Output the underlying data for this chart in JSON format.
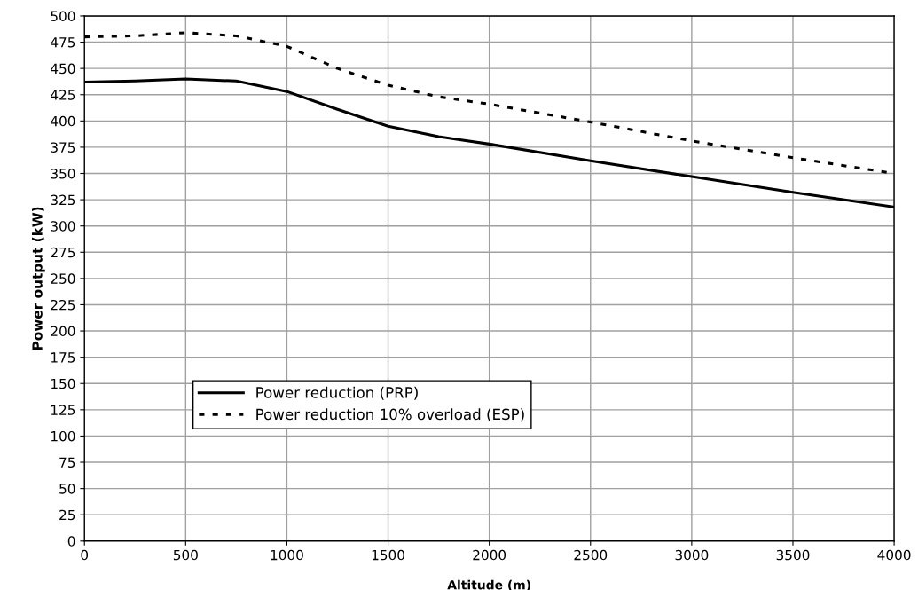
{
  "chart_data": {
    "type": "line",
    "xlabel": "Altitude (m)",
    "ylabel": "Power output (kW)",
    "x": [
      0,
      250,
      500,
      750,
      1000,
      1250,
      1500,
      1750,
      2000,
      2500,
      3000,
      3500,
      4000
    ],
    "series": [
      {
        "name": "Power reduction (PRP)",
        "color": "#000000",
        "line_style": "solid",
        "values": [
          437,
          438,
          440,
          438,
          428,
          411,
          395,
          385,
          378,
          362,
          347,
          332,
          318
        ]
      },
      {
        "name": "Power reduction 10% overload (ESP)",
        "color": "#000000",
        "line_style": "dotted",
        "values": [
          480,
          481,
          484,
          481,
          471,
          450,
          434,
          423,
          416,
          399,
          381,
          365,
          350
        ]
      }
    ],
    "xlim": [
      0,
      4000
    ],
    "xticks": [
      0,
      500,
      1000,
      1500,
      2000,
      2500,
      3000,
      3500,
      4000
    ],
    "ylim": [
      0,
      500
    ],
    "yticks": [
      0,
      25,
      50,
      75,
      100,
      125,
      150,
      175,
      200,
      225,
      250,
      275,
      300,
      325,
      350,
      375,
      400,
      425,
      450,
      475,
      500
    ],
    "grid": true,
    "legend": "bottom left",
    "marker": "none"
  }
}
